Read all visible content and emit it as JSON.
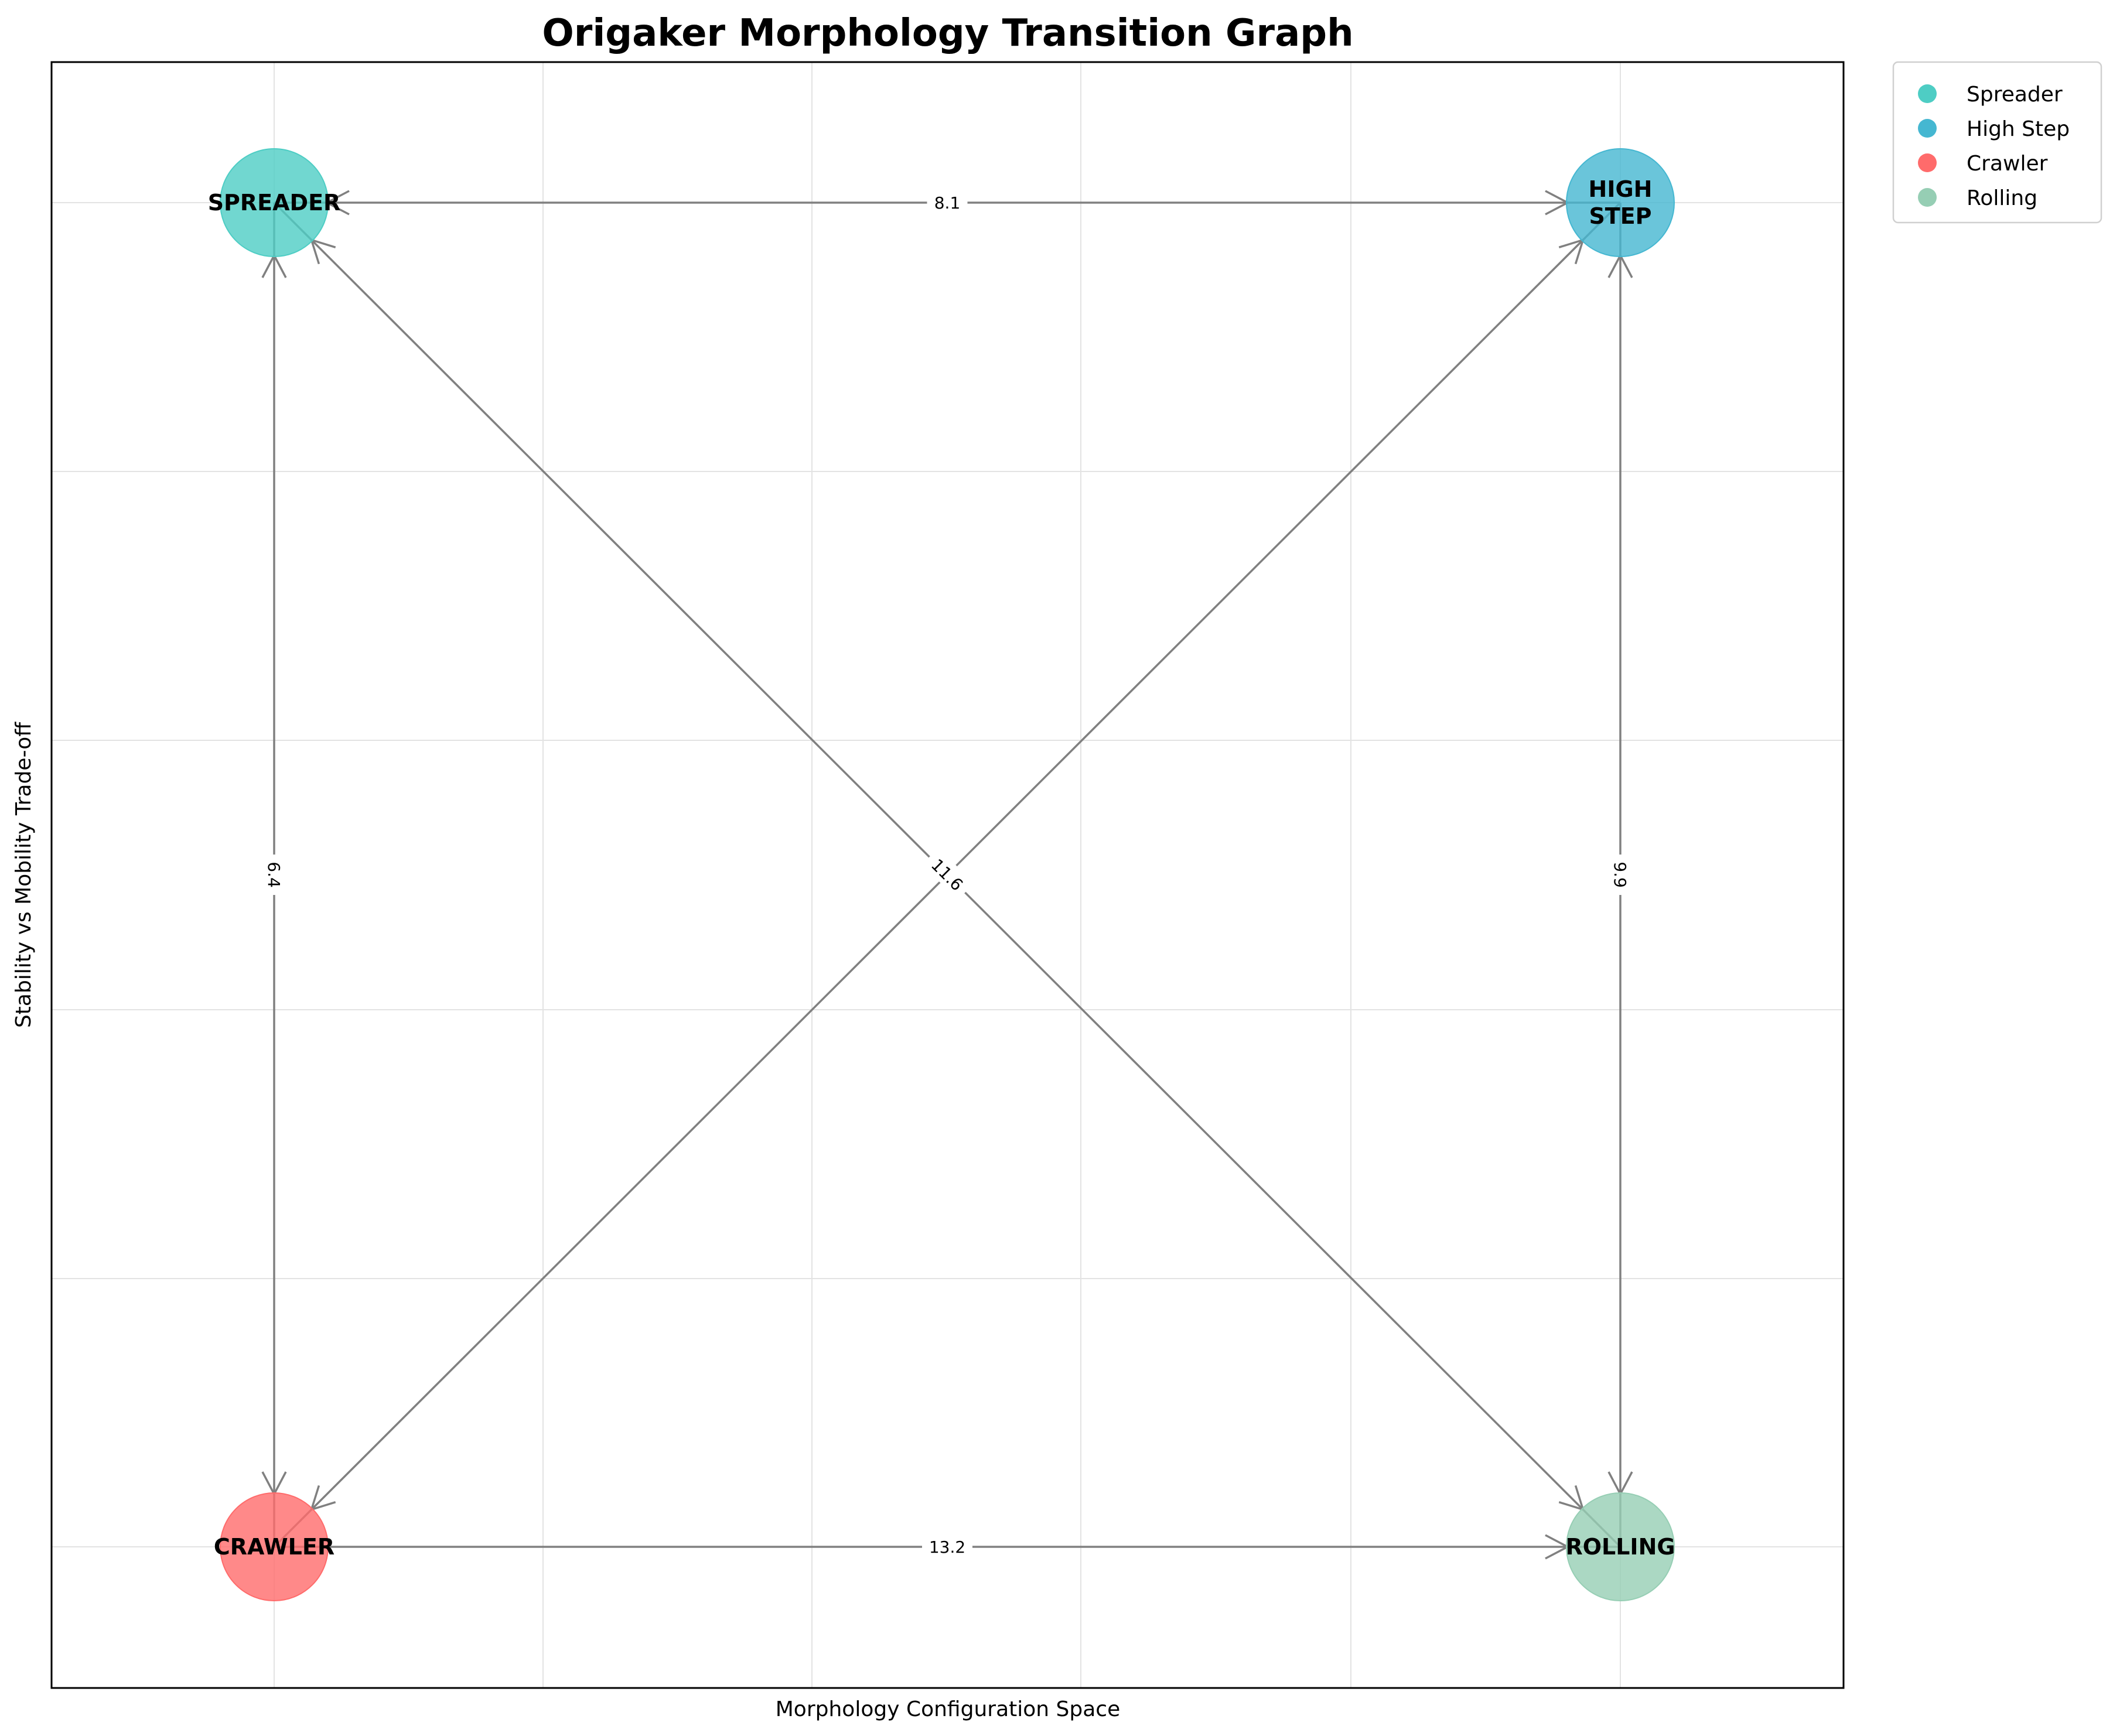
{
  "title": "Origaker Morphology Transition Graph",
  "xlabel": "Morphology Configuration Space",
  "ylabel": "Stability vs Mobility Trade-off",
  "grid": true,
  "nodes": [
    {
      "id": "spreader",
      "label": "SPREADER",
      "lines": [
        "SPREADER"
      ],
      "color": "#4ecdc4",
      "pos": "top-left"
    },
    {
      "id": "high_step",
      "label": "HIGH STEP",
      "lines": [
        "HIGH",
        "STEP"
      ],
      "color": "#45b7d1",
      "pos": "top-right"
    },
    {
      "id": "crawler",
      "label": "CRAWLER",
      "lines": [
        "CRAWLER"
      ],
      "color": "#ff6b6b",
      "pos": "bottom-left"
    },
    {
      "id": "rolling",
      "label": "ROLLING",
      "lines": [
        "ROLLING"
      ],
      "color": "#96ceb4",
      "pos": "bottom-right"
    }
  ],
  "edges": [
    {
      "from": "spreader",
      "to": "high_step",
      "weight": "8.1",
      "bidirectional": true
    },
    {
      "from": "spreader",
      "to": "crawler",
      "weight": "6.4",
      "bidirectional": true
    },
    {
      "from": "high_step",
      "to": "rolling",
      "weight": "9.9",
      "bidirectional": true
    },
    {
      "from": "crawler",
      "to": "rolling",
      "weight": "13.2",
      "bidirectional": false
    },
    {
      "from": "spreader",
      "to": "rolling",
      "weight": "11.6",
      "bidirectional": true
    },
    {
      "from": "high_step",
      "to": "crawler",
      "weight": "",
      "bidirectional": true
    }
  ],
  "legend": {
    "placement": "outside-top-right",
    "items": [
      {
        "label": "Spreader",
        "color": "#4ecdc4"
      },
      {
        "label": "High Step",
        "color": "#45b7d1"
      },
      {
        "label": "Crawler",
        "color": "#ff6b6b"
      },
      {
        "label": "Rolling",
        "color": "#96ceb4"
      }
    ]
  }
}
